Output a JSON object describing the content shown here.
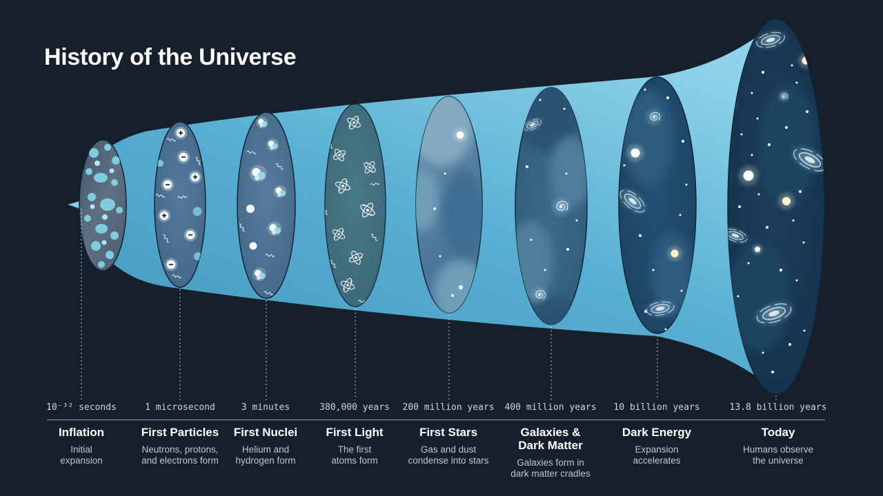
{
  "title": "History of the Universe",
  "colors": {
    "background": "#16202b",
    "horn_blue_light": "#8fd3ea",
    "horn_blue_dark": "#4494b8",
    "heading_text": "#ffffff",
    "time_text": "#cdd6dd",
    "description_text": "#bcc6cf",
    "axis_line": "#8e9ba6"
  },
  "timeline": {
    "stages": [
      {
        "time": "10⁻³² seconds",
        "name": [
          "Inflation"
        ],
        "description": [
          "Initial",
          "expansion"
        ]
      },
      {
        "time": "1 microsecond",
        "name": [
          "First Particles"
        ],
        "description": [
          "Neutrons, protons,",
          "and electrons form"
        ]
      },
      {
        "time": "3 minutes",
        "name": [
          "First Nuclei"
        ],
        "description": [
          "Helium and",
          "hydrogen form"
        ]
      },
      {
        "time": "380,000 years",
        "name": [
          "First Light"
        ],
        "description": [
          "The first",
          "atoms form"
        ]
      },
      {
        "time": "200 million years",
        "name": [
          "First Stars"
        ],
        "description": [
          "Gas and dust",
          "condense into stars"
        ]
      },
      {
        "time": "400 million years",
        "name": [
          "Galaxies &",
          "Dark Matter"
        ],
        "description": [
          "Galaxies form in",
          "dark matter cradles"
        ]
      },
      {
        "time": "10 billion years",
        "name": [
          "Dark Energy"
        ],
        "description": [
          "Expansion",
          "accelerates"
        ]
      },
      {
        "time": "13.8 billion years",
        "name": [
          "Today"
        ],
        "description": [
          "Humans observe",
          "the universe"
        ]
      }
    ]
  }
}
